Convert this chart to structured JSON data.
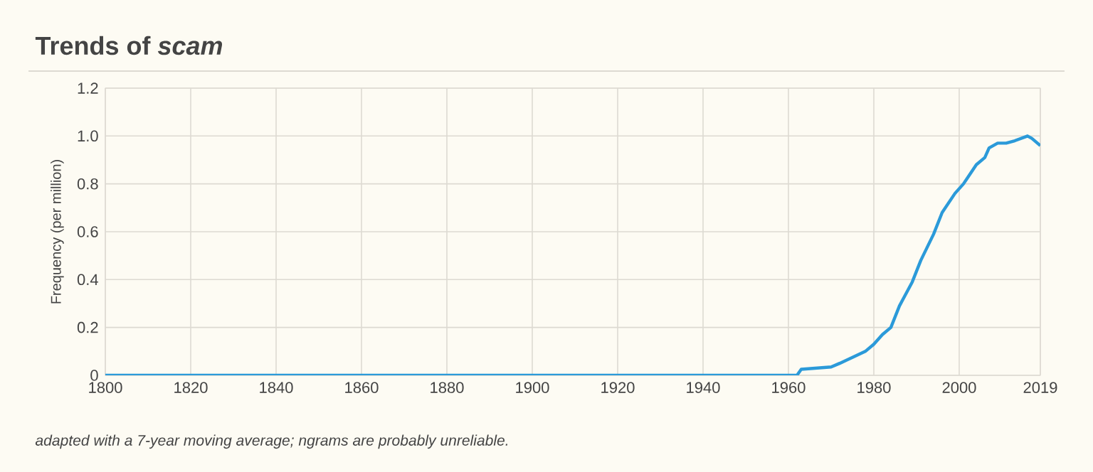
{
  "chart_data": {
    "type": "line",
    "title": "Trends of *scam*",
    "ylabel": "Frequency (per million)",
    "annotations": [
      "adapted with a 7-year moving average; ngrams are probably unreliable."
    ],
    "x": [
      1800,
      1962,
      1963,
      1970,
      1972,
      1975,
      1978,
      1980,
      1982,
      1984,
      1986,
      1989,
      1991,
      1994,
      1996,
      1999,
      2001,
      2004,
      2006,
      2007,
      2009,
      2011,
      2013,
      2016,
      2017,
      2019
    ],
    "series": [
      {
        "color": "#2b9ad9",
        "values": [
          0,
          0,
          0.025,
          0.035,
          0.05,
          0.075,
          0.1,
          0.13,
          0.17,
          0.2,
          0.29,
          0.39,
          0.48,
          0.59,
          0.68,
          0.76,
          0.8,
          0.88,
          0.91,
          0.95,
          0.97,
          0.97,
          0.98,
          1.0,
          0.99,
          0.96
        ]
      }
    ],
    "xlim": [
      1800,
      2019
    ],
    "ylim": [
      0,
      1.2
    ],
    "xticks": [
      1800,
      1820,
      1840,
      1860,
      1880,
      1900,
      1920,
      1940,
      1960,
      1980,
      2000,
      2019
    ],
    "yticks": [
      0,
      0.2,
      0.4,
      0.6,
      0.8,
      {
        "value": 1,
        "label": "1.0"
      },
      1.2
    ],
    "grid": true,
    "marker": "none",
    "line_style": "solid"
  }
}
